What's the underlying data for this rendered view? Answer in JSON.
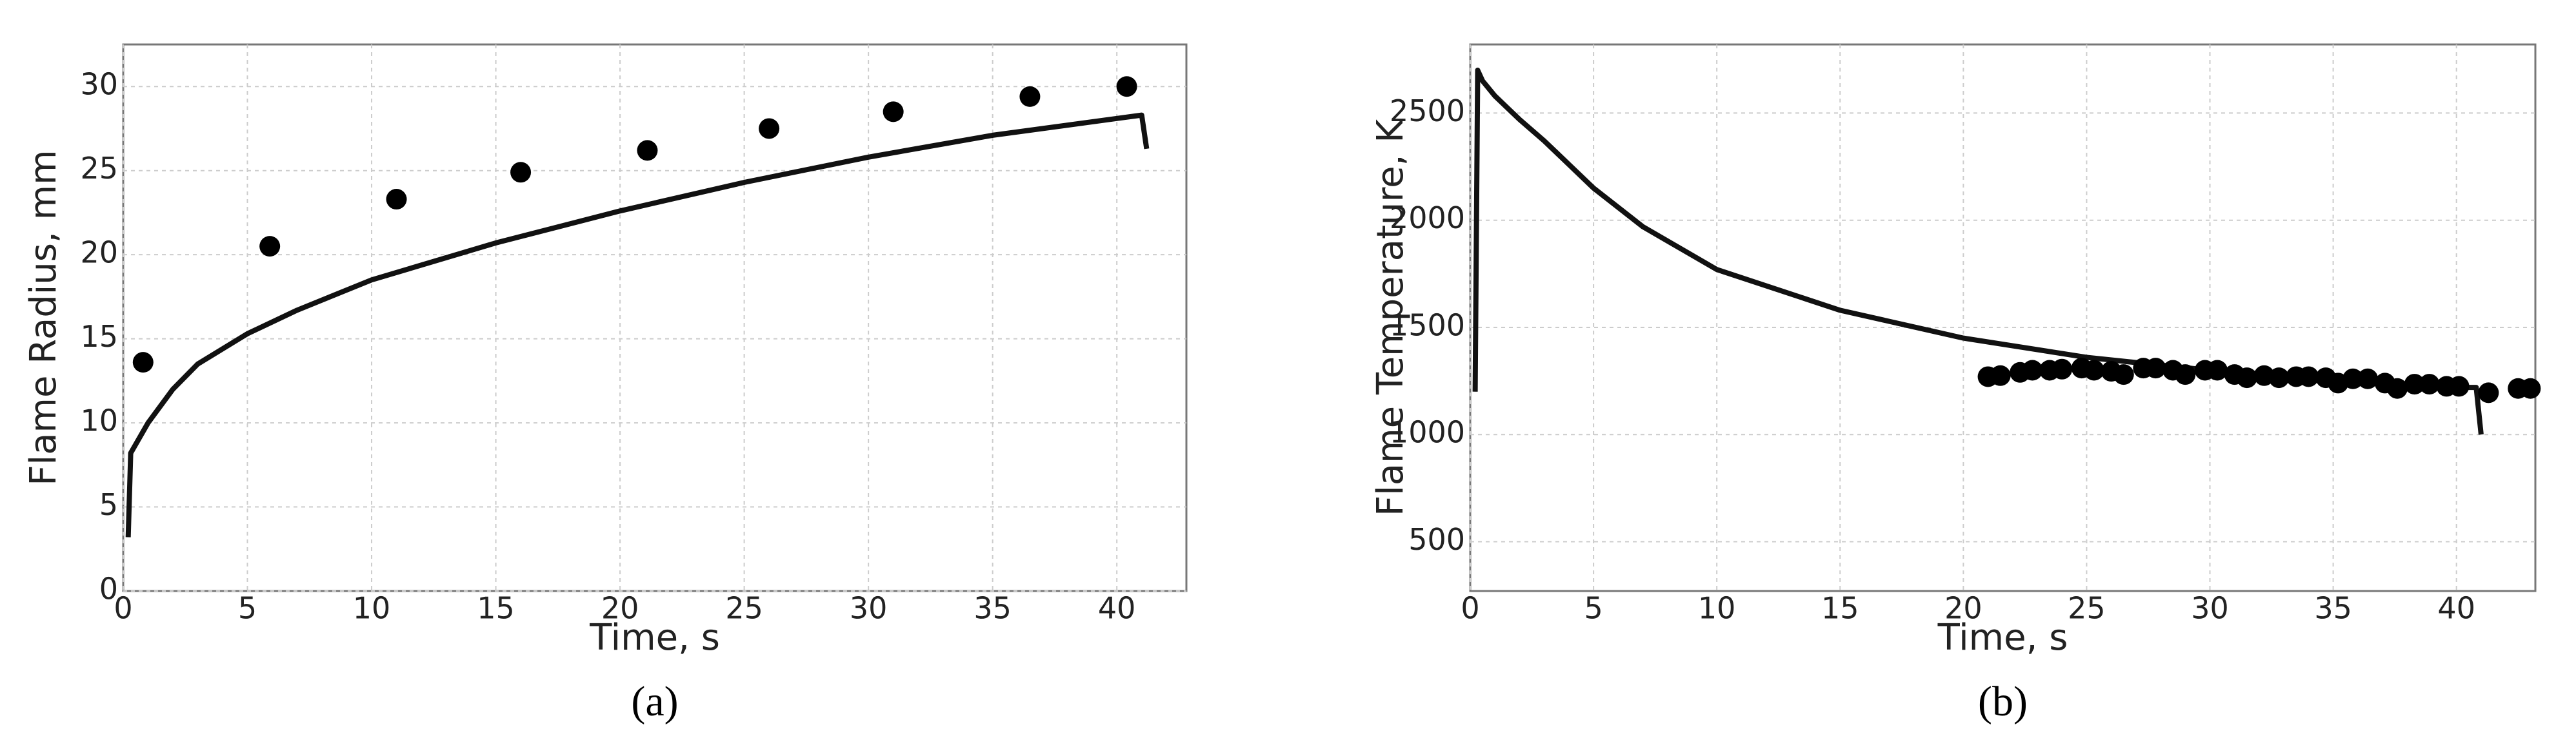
{
  "chart_data": [
    {
      "type": "line",
      "panel_label": "(a)",
      "x_label": "Time, s",
      "y_label": "Flame Radius, mm",
      "xlim": [
        0,
        42.8
      ],
      "ylim": [
        0,
        32.5
      ],
      "xticks": [
        0,
        5,
        10,
        15,
        20,
        25,
        30,
        35,
        40
      ],
      "yticks": [
        0,
        5,
        10,
        15,
        20,
        25,
        30
      ],
      "grid": true,
      "series": [
        {
          "style": "line",
          "color": "#111111",
          "x": [
            0.2,
            0.3,
            1,
            2,
            3,
            5,
            7,
            10,
            15,
            20,
            25,
            30,
            35,
            40,
            41,
            41.2
          ],
          "values": [
            3.2,
            8.2,
            10,
            12,
            13.5,
            15.3,
            16.7,
            18.5,
            20.7,
            22.6,
            24.3,
            25.8,
            27.1,
            28.1,
            28.3,
            26.3
          ]
        },
        {
          "style": "points",
          "color": "#000000",
          "x": [
            0.8,
            5.9,
            11,
            16,
            21.1,
            26,
            31,
            36.5,
            40.4
          ],
          "values": [
            13.6,
            20.5,
            23.3,
            24.9,
            26.2,
            27.5,
            28.5,
            29.4,
            30
          ]
        }
      ]
    },
    {
      "type": "line",
      "panel_label": "(b)",
      "x_label": "Time, s",
      "y_label": "Flame Temperature, K",
      "xlim": [
        0,
        43.2
      ],
      "ylim": [
        270,
        2820
      ],
      "xticks": [
        0,
        5,
        10,
        15,
        20,
        25,
        30,
        35,
        40
      ],
      "yticks": [
        500,
        1000,
        1500,
        2000,
        2500
      ],
      "grid": true,
      "series": [
        {
          "style": "line",
          "color": "#111111",
          "x": [
            0.2,
            0.3,
            0.5,
            1,
            2,
            3,
            5,
            7,
            10,
            15,
            20,
            25,
            30,
            35,
            40,
            40.8,
            41
          ],
          "values": [
            1200,
            2700,
            2650,
            2580,
            2470,
            2370,
            2150,
            1970,
            1770,
            1580,
            1450,
            1360,
            1300,
            1260,
            1220,
            1220,
            1000
          ]
        },
        {
          "style": "points",
          "color": "#000000",
          "x": [
            21,
            21.5,
            22.3,
            22.8,
            23.5,
            24,
            24.8,
            25.3,
            26,
            26.5,
            27.3,
            27.8,
            28.5,
            29,
            29.8,
            30.3,
            31,
            31.5,
            32.2,
            32.8,
            33.5,
            34,
            34.7,
            35.2,
            35.8,
            36.4,
            37.1,
            37.6,
            38.3,
            38.9,
            39.6,
            40.1,
            41.3,
            42.5,
            43
          ],
          "values": [
            1270,
            1275,
            1290,
            1300,
            1300,
            1305,
            1310,
            1300,
            1295,
            1280,
            1310,
            1310,
            1300,
            1280,
            1300,
            1300,
            1280,
            1265,
            1275,
            1265,
            1270,
            1270,
            1265,
            1240,
            1260,
            1260,
            1240,
            1215,
            1235,
            1235,
            1225,
            1225,
            1195,
            1215,
            1215
          ]
        }
      ]
    }
  ]
}
